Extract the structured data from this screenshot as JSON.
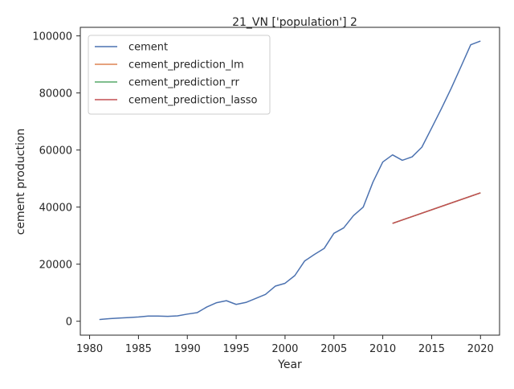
{
  "chart_data": {
    "type": "line",
    "title": "21_VN ['population'] 2",
    "xlabel": "Year",
    "ylabel": "cement production",
    "xlim": [
      1979.05,
      2021.95
    ],
    "ylim": [
      -4875,
      103000
    ],
    "xticks": [
      1980,
      1985,
      1990,
      1995,
      2000,
      2005,
      2010,
      2015,
      2020
    ],
    "xtick_labels": [
      "1980",
      "1985",
      "1990",
      "1995",
      "2000",
      "2005",
      "2010",
      "2015",
      "2020"
    ],
    "yticks": [
      0,
      20000,
      40000,
      60000,
      80000,
      100000
    ],
    "ytick_labels": [
      "0",
      "20000",
      "40000",
      "60000",
      "80000",
      "100000"
    ],
    "grid": false,
    "legend_position": "upper-left",
    "series": [
      {
        "name": "cement",
        "color": "#4c72b0",
        "x": [
          1981,
          1982,
          1983,
          1984,
          1985,
          1986,
          1987,
          1988,
          1989,
          1990,
          1991,
          1992,
          1993,
          1994,
          1995,
          1996,
          1997,
          1998,
          1999,
          2000,
          2001,
          2002,
          2003,
          2004,
          2005,
          2006,
          2007,
          2008,
          2009,
          2010,
          2011,
          2012,
          2013,
          2014,
          2015,
          2016,
          2017,
          2018,
          2019,
          2020
        ],
        "y": [
          600,
          900,
          1100,
          1300,
          1500,
          1800,
          1800,
          1700,
          1900,
          2500,
          3000,
          5000,
          6500,
          7200,
          5900,
          6600,
          8000,
          9400,
          12300,
          13300,
          16000,
          21100,
          23400,
          25500,
          30800,
          32700,
          37000,
          40000,
          48800,
          55800,
          58300,
          56400,
          57600,
          61000,
          67700,
          74500,
          81600,
          89200,
          96900,
          98200
        ]
      },
      {
        "name": "cement_prediction_lm",
        "color": "#dd8452",
        "x": [
          2011,
          2020
        ],
        "y": [
          34300,
          45000
        ]
      },
      {
        "name": "cement_prediction_rr",
        "color": "#55a868",
        "x": [
          2011,
          2020
        ],
        "y": [
          34300,
          45000
        ]
      },
      {
        "name": "cement_prediction_lasso",
        "color": "#c44e52",
        "x": [
          2011,
          2020
        ],
        "y": [
          34300,
          45000
        ]
      }
    ]
  }
}
